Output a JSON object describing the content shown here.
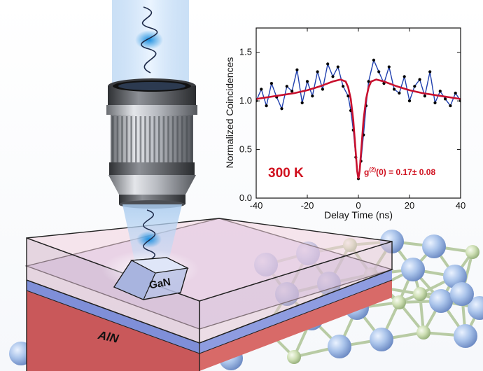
{
  "labels": {
    "substrate": "AlN",
    "quantum_dot": "GaN",
    "temperature": "300 K",
    "g2_prefix": "g",
    "g2_superscript": "(2)",
    "g2_suffix": "(0)  = 0.17",
    "g2_error": " 0.08"
  },
  "colors": {
    "fit_line": "#c8102e",
    "data_line": "#1f3fae",
    "data_points": "#000000",
    "annotation": "#d0101e"
  },
  "chart_data": {
    "type": "line",
    "title": "",
    "xlabel": "Delay Time (ns)",
    "ylabel": "Normalized Coincidences",
    "xlim": [
      -40,
      40
    ],
    "ylim": [
      0,
      1.75
    ],
    "xticks": [
      -40,
      -20,
      0,
      20,
      40
    ],
    "yticks": [
      0.0,
      0.5,
      1.0,
      1.5
    ],
    "ytick_labels": [
      "0.0",
      "0.5",
      "1.0",
      "1.5"
    ],
    "grid": false,
    "series": [
      {
        "kind": "fit",
        "x": [
          -40,
          -35,
          -30,
          -25,
          -20,
          -15,
          -10,
          -7,
          -5,
          -4,
          -3,
          -2,
          -1.5,
          -1,
          -0.5,
          0,
          0.5,
          1,
          1.5,
          2,
          3,
          4,
          5,
          7,
          10,
          15,
          20,
          25,
          30,
          35,
          40
        ],
        "y": [
          1.02,
          1.04,
          1.06,
          1.08,
          1.11,
          1.15,
          1.2,
          1.22,
          1.2,
          1.14,
          1.02,
          0.8,
          0.63,
          0.45,
          0.28,
          0.2,
          0.28,
          0.45,
          0.63,
          0.8,
          1.02,
          1.14,
          1.2,
          1.22,
          1.2,
          1.15,
          1.11,
          1.08,
          1.06,
          1.04,
          1.02
        ]
      },
      {
        "kind": "measured",
        "x": [
          -40,
          -38,
          -36,
          -34,
          -32,
          -30,
          -28,
          -26,
          -24,
          -22,
          -20,
          -18,
          -16,
          -14,
          -12,
          -10,
          -8,
          -6,
          -4,
          -3,
          -2,
          -1,
          0,
          1,
          2,
          3,
          4,
          6,
          8,
          10,
          12,
          14,
          16,
          18,
          20,
          22,
          24,
          26,
          28,
          30,
          32,
          34,
          36,
          38,
          40
        ],
        "y": [
          1.0,
          1.12,
          0.95,
          1.18,
          1.04,
          0.92,
          1.15,
          1.1,
          1.32,
          0.98,
          1.2,
          1.05,
          1.3,
          1.12,
          1.38,
          1.25,
          1.35,
          1.15,
          1.05,
          0.9,
          0.7,
          0.42,
          0.2,
          0.38,
          0.65,
          0.95,
          1.2,
          1.42,
          1.3,
          1.18,
          1.35,
          1.12,
          1.08,
          1.25,
          1.0,
          1.15,
          1.22,
          1.05,
          1.3,
          0.98,
          1.1,
          1.02,
          0.95,
          1.08,
          1.0
        ]
      }
    ]
  }
}
